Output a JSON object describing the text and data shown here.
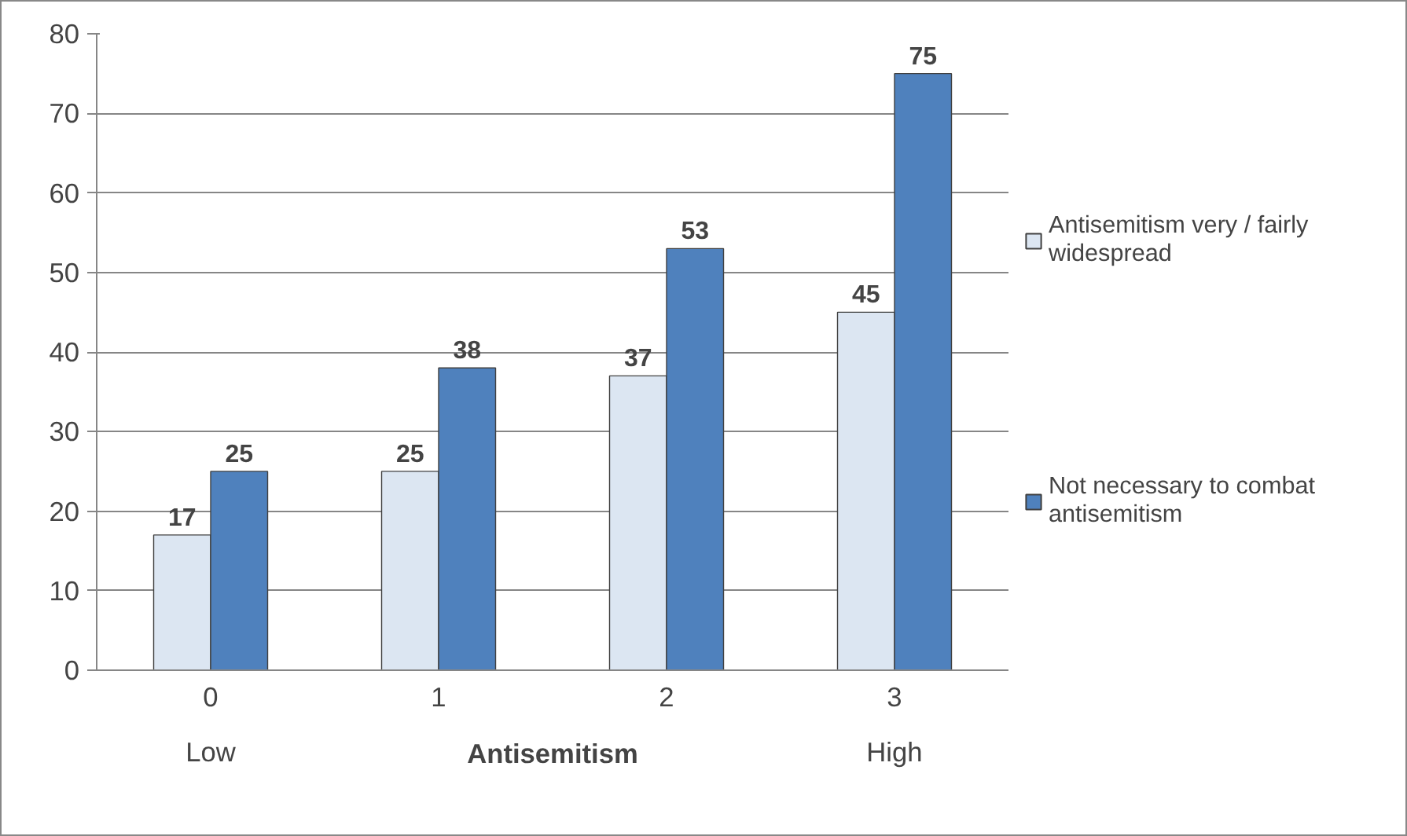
{
  "chart_data": {
    "type": "bar",
    "categories": [
      "0",
      "1",
      "2",
      "3"
    ],
    "xlabel": "Antisemitism",
    "annotations": [
      "Low",
      "High"
    ],
    "series": [
      {
        "name": "Antisemitism very / fairly widespread",
        "color": "#dce6f2",
        "values": [
          17,
          25,
          37,
          45
        ]
      },
      {
        "name": "Not necessary to combat antisemitism",
        "color": "#4f81bd",
        "values": [
          25,
          38,
          53,
          75
        ]
      }
    ],
    "ylim": [
      0,
      80
    ],
    "yticks": [
      0,
      10,
      20,
      30,
      40,
      50,
      60,
      70,
      80
    ],
    "grid": "y",
    "legend": "right",
    "data_labels": true
  }
}
